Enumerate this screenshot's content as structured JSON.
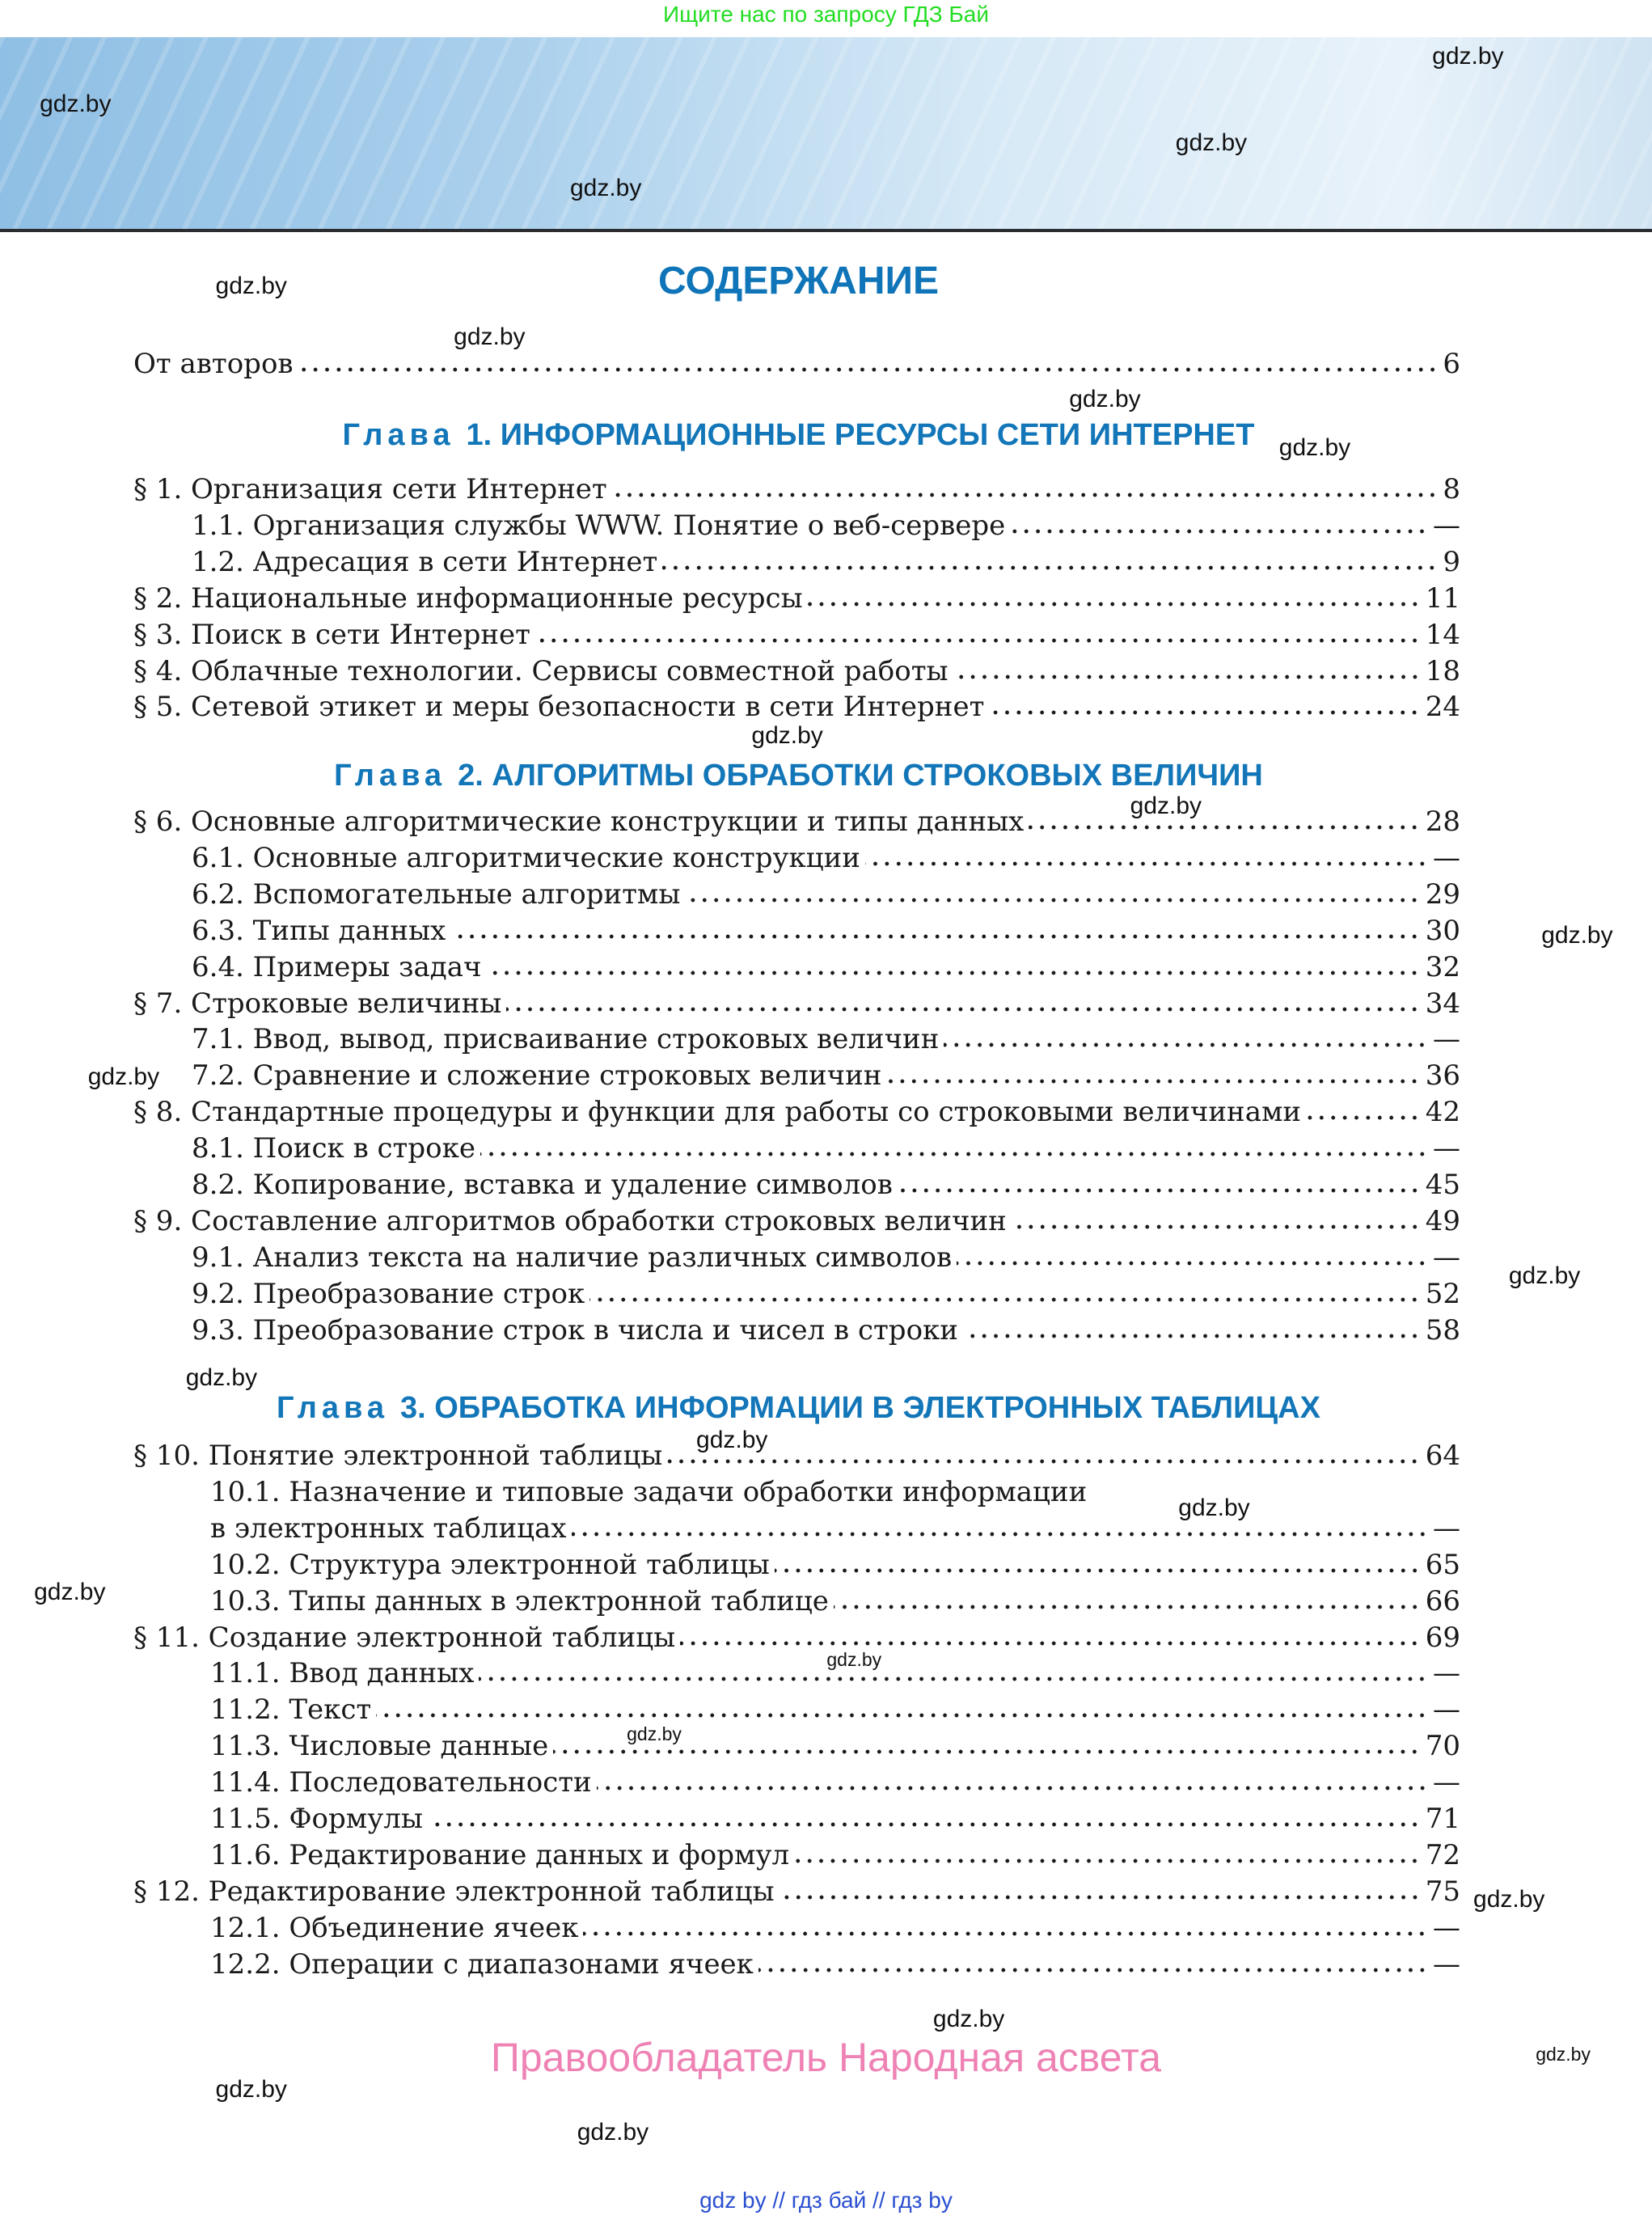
{
  "top_note": "Ищите нас по запросу ГДЗ Бай",
  "title": "СОДЕРЖАНИЕ",
  "intro": {
    "label": "От авторов",
    "page": "6"
  },
  "chapters": [
    {
      "word": "Глава",
      "title": "1. ИНФОРМАЦИОННЫЕ РЕСУРСЫ СЕТИ ИНТЕРНЕТ",
      "items": [
        {
          "level": 1,
          "label": "§ 1. Организация сети Интернет",
          "page": "8"
        },
        {
          "level": 2,
          "label": "1.1. Организация службы WWW. Понятие о веб-сервере",
          "page": "—"
        },
        {
          "level": 2,
          "label": "1.2. Адресация в сети Интернет",
          "page": "9"
        },
        {
          "level": 1,
          "label": "§ 2. Национальные информационные ресурсы",
          "page": "11"
        },
        {
          "level": 1,
          "label": "§ 3. Поиск в сети Интернет",
          "page": "14"
        },
        {
          "level": 1,
          "label": "§ 4. Облачные технологии. Сервисы совместной работы",
          "page": "18"
        },
        {
          "level": 1,
          "label": "§ 5. Сетевой этикет и меры безопасности в сети Интернет",
          "page": "24"
        }
      ]
    },
    {
      "word": "Глава",
      "title": "2. АЛГОРИТМЫ ОБРАБОТКИ СТРОКОВЫХ ВЕЛИЧИН",
      "items": [
        {
          "level": 1,
          "label": "§ 6. Основные алгоритмические конструкции и типы данных",
          "page": "28"
        },
        {
          "level": 2,
          "label": "6.1. Основные алгоритмические конструкции",
          "page": "—"
        },
        {
          "level": 2,
          "label": "6.2. Вспомогательные алгоритмы",
          "page": "29"
        },
        {
          "level": 2,
          "label": "6.3. Типы данных",
          "page": "30"
        },
        {
          "level": 2,
          "label": "6.4. Примеры задач",
          "page": "32"
        },
        {
          "level": 1,
          "label": "§ 7. Строковые величины",
          "page": "34"
        },
        {
          "level": 2,
          "label": "7.1. Ввод, вывод, присваивание строковых величин",
          "page": "—"
        },
        {
          "level": 2,
          "label": "7.2. Сравнение и сложение строковых величин",
          "page": "36"
        },
        {
          "level": 1,
          "label": "§ 8. Стандартные процедуры и функции для работы со строковыми величинами",
          "page": "42"
        },
        {
          "level": 2,
          "label": "8.1. Поиск в строке",
          "page": "—"
        },
        {
          "level": 2,
          "label": "8.2. Копирование, вставка и удаление символов",
          "page": "45"
        },
        {
          "level": 1,
          "label": "§ 9. Составление алгоритмов обработки строковых величин",
          "page": "49"
        },
        {
          "level": 2,
          "label": "9.1. Анализ текста на наличие различных символов",
          "page": "—"
        },
        {
          "level": 2,
          "label": "9.2. Преобразование строк",
          "page": "52"
        },
        {
          "level": 2,
          "label": "9.3. Преобразование строк в числа и чисел в строки",
          "page": "58"
        }
      ]
    },
    {
      "word": "Глава",
      "title": "3. ОБРАБОТКА ИНФОРМАЦИИ В ЭЛЕКТРОННЫХ ТАБЛИЦАХ",
      "items": [
        {
          "level": 1,
          "label": "§ 10. Понятие электронной таблицы",
          "page": "64"
        },
        {
          "level": 3,
          "label": "10.1. Назначение и типовые задачи обработки информации",
          "page": ""
        },
        {
          "level": 3,
          "label": "в электронных таблицах",
          "page": "—"
        },
        {
          "level": 3,
          "label": "10.2. Структура электронной таблицы",
          "page": "65"
        },
        {
          "level": 3,
          "label": "10.3. Типы данных в электронной таблице",
          "page": "66"
        },
        {
          "level": 1,
          "label": "§ 11. Создание электронной таблицы",
          "page": "69"
        },
        {
          "level": 3,
          "label": "11.1. Ввод данных",
          "page": "—"
        },
        {
          "level": 3,
          "label": "11.2. Текст",
          "page": "—"
        },
        {
          "level": 3,
          "label": "11.3. Числовые данные",
          "page": "70"
        },
        {
          "level": 3,
          "label": "11.4. Последовательности",
          "page": "—"
        },
        {
          "level": 3,
          "label": "11.5. Формулы",
          "page": "71"
        },
        {
          "level": 3,
          "label": "11.6. Редактирование данных и формул",
          "page": "72"
        },
        {
          "level": 1,
          "label": "§ 12. Редактирование электронной таблицы",
          "page": "75"
        },
        {
          "level": 3,
          "label": "12.1. Объединение ячеек",
          "page": "—"
        },
        {
          "level": 3,
          "label": "12.2. Операции с диапазонами ячеек",
          "page": "—"
        }
      ]
    }
  ],
  "watermark": "gdz.by",
  "rights": "Правообладатель Народная асвета",
  "bottom_links": [
    "gdz by",
    "гдз бай",
    "гдз by"
  ],
  "bottom_separator": "//",
  "colors": {
    "heading": "#0f74b8",
    "top_note": "#22dd22",
    "rights": "#ee82b4",
    "links": "#2a4fd0"
  }
}
